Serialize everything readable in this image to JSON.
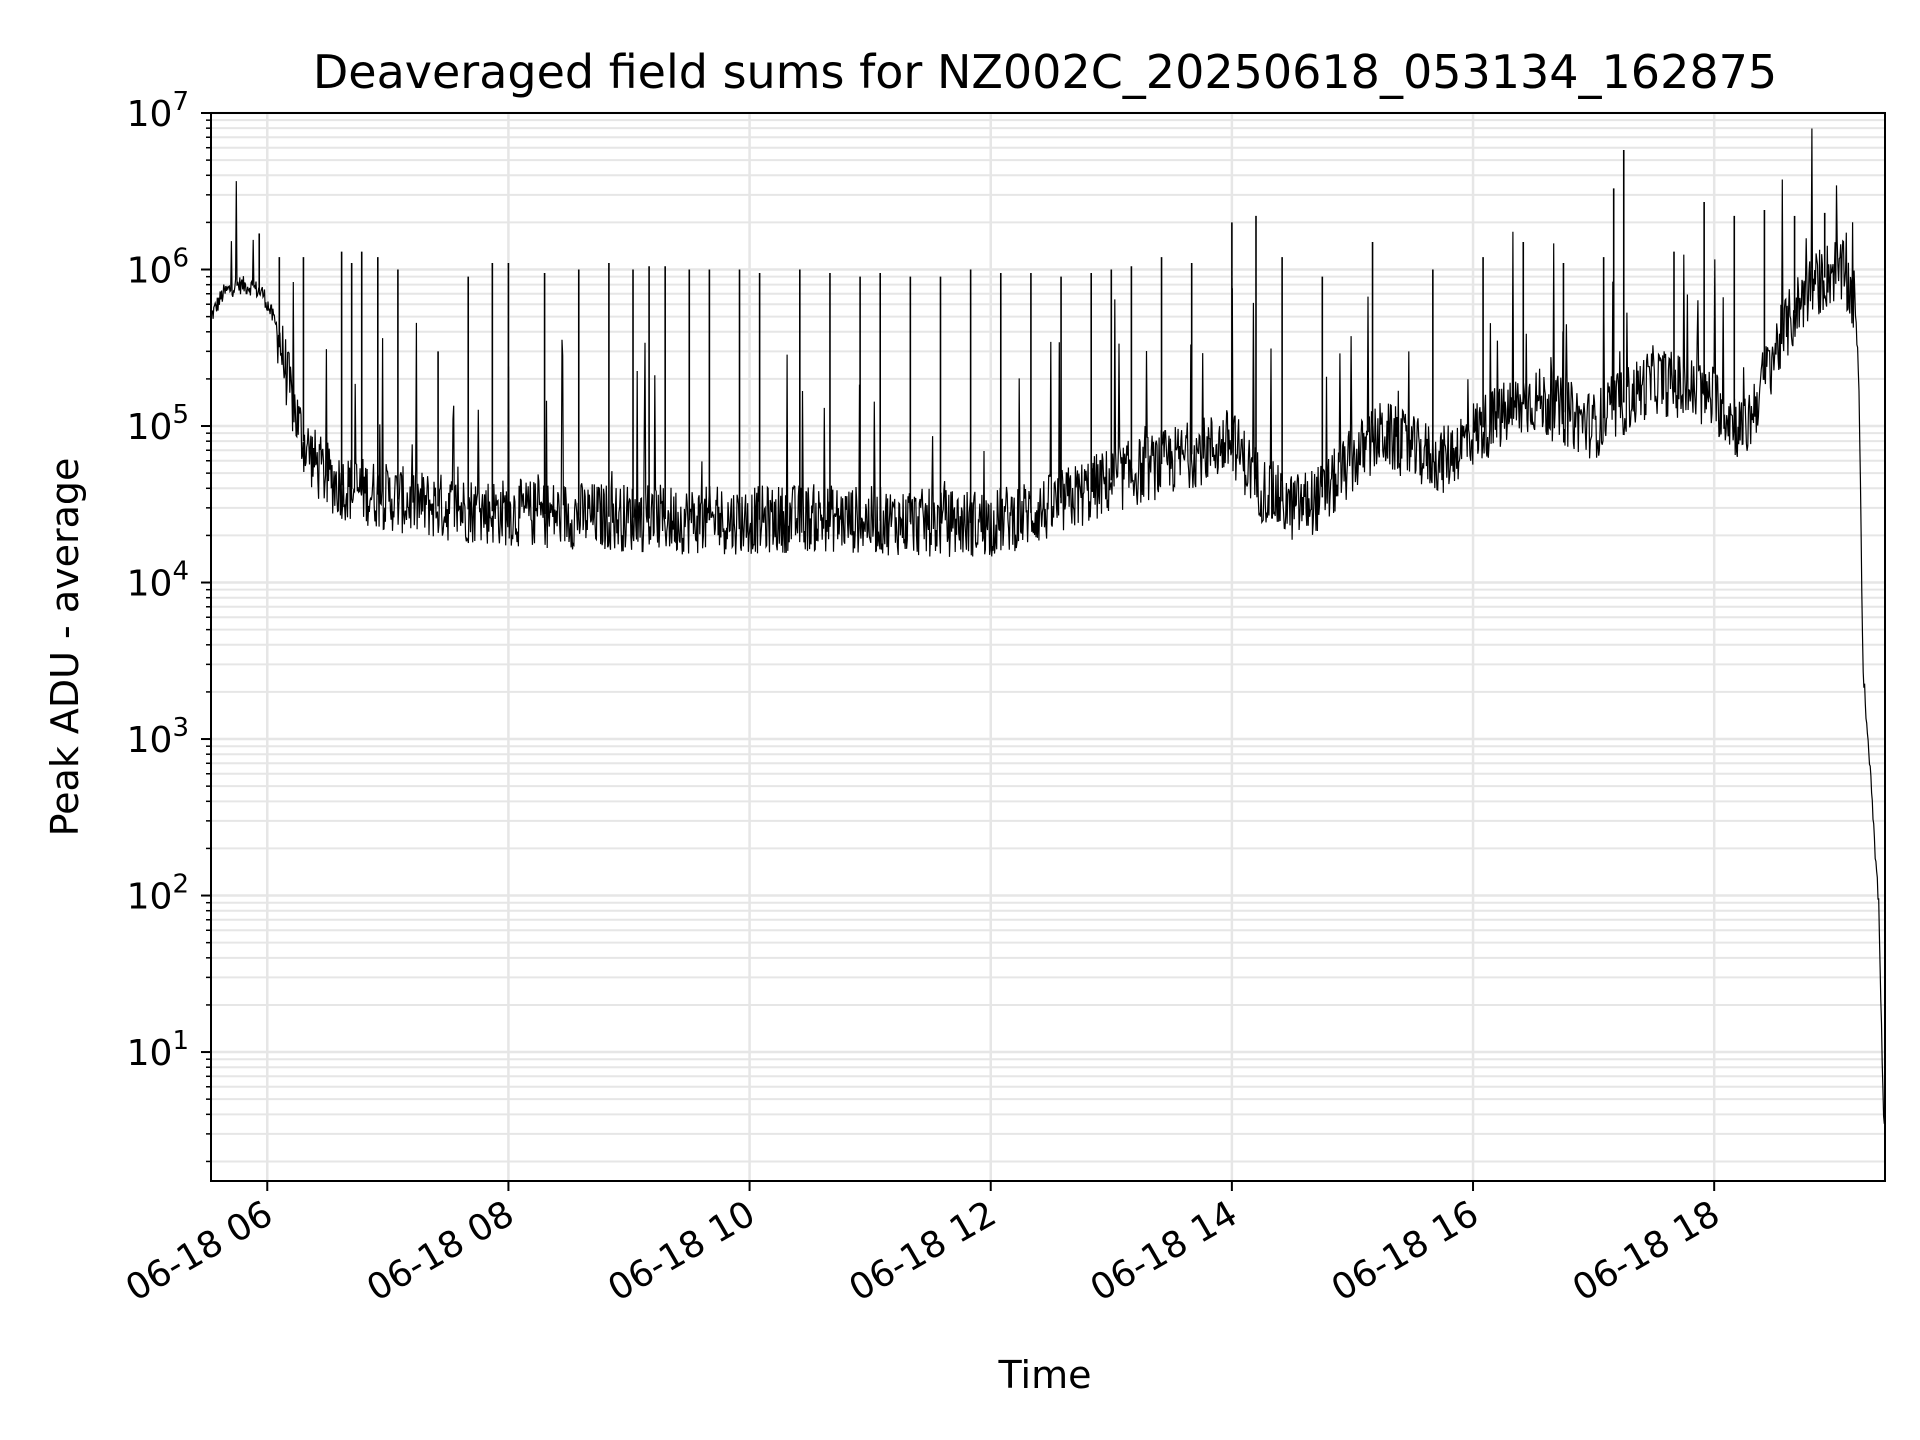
{
  "chart_data": {
    "type": "line",
    "title": "Deaveraged field sums for NZ002C_20250618_053134_162875",
    "xlabel": "Time",
    "ylabel": "Peak ADU - average",
    "yscale": "log",
    "ylim": [
      1.5,
      10000000
    ],
    "xlim": [
      "2025-06-18 05:32",
      "2025-06-18 19:25"
    ],
    "grid": true,
    "line_color": "#000000",
    "grid_color": "#e6e6e6",
    "x_ticks": [
      {
        "value": "2025-06-18 06:00",
        "label": "06-18 06"
      },
      {
        "value": "2025-06-18 08:00",
        "label": "06-18 08"
      },
      {
        "value": "2025-06-18 10:00",
        "label": "06-18 10"
      },
      {
        "value": "2025-06-18 12:00",
        "label": "06-18 12"
      },
      {
        "value": "2025-06-18 14:00",
        "label": "06-18 14"
      },
      {
        "value": "2025-06-18 16:00",
        "label": "06-18 16"
      },
      {
        "value": "2025-06-18 18:00",
        "label": "06-18 18"
      }
    ],
    "y_ticks": [
      {
        "value": 10,
        "base": "10",
        "exp": "1"
      },
      {
        "value": 100,
        "base": "10",
        "exp": "2"
      },
      {
        "value": 1000,
        "base": "10",
        "exp": "3"
      },
      {
        "value": 10000,
        "base": "10",
        "exp": "4"
      },
      {
        "value": 100000,
        "base": "10",
        "exp": "5"
      },
      {
        "value": 1000000,
        "base": "10",
        "exp": "6"
      },
      {
        "value": 10000000,
        "base": "10",
        "exp": "7"
      }
    ],
    "series": [
      {
        "x": [
          "2025-06-18 05:32",
          "2025-06-18 05:38",
          "2025-06-18 05:45",
          "2025-06-18 05:52",
          "2025-06-18 05:58",
          "2025-06-18 06:05",
          "2025-06-18 06:12",
          "2025-06-18 06:18",
          "2025-06-18 06:25",
          "2025-06-18 06:32",
          "2025-06-18 06:40",
          "2025-06-18 06:50",
          "2025-06-18 07:00",
          "2025-06-18 07:15",
          "2025-06-18 07:30",
          "2025-06-18 08:00",
          "2025-06-18 08:30",
          "2025-06-18 09:00",
          "2025-06-18 09:30",
          "2025-06-18 10:00",
          "2025-06-18 10:30",
          "2025-06-18 11:00",
          "2025-06-18 11:30",
          "2025-06-18 12:00",
          "2025-06-18 12:30",
          "2025-06-18 13:00",
          "2025-06-18 13:30",
          "2025-06-18 14:00",
          "2025-06-18 14:15",
          "2025-06-18 14:30",
          "2025-06-18 14:45",
          "2025-06-18 15:00",
          "2025-06-18 15:15",
          "2025-06-18 15:30",
          "2025-06-18 15:45",
          "2025-06-18 16:00",
          "2025-06-18 16:30",
          "2025-06-18 17:00",
          "2025-06-18 17:30",
          "2025-06-18 18:00",
          "2025-06-18 18:15",
          "2025-06-18 18:30",
          "2025-06-18 18:45",
          "2025-06-18 19:00",
          "2025-06-18 19:05",
          "2025-06-18 19:10",
          "2025-06-18 19:12",
          "2025-06-18 19:14",
          "2025-06-18 19:16",
          "2025-06-18 19:18",
          "2025-06-18 19:20",
          "2025-06-18 19:22",
          "2025-06-18 19:23",
          "2025-06-18 19:24",
          "2025-06-18 19:25"
        ],
        "y": [
          500000,
          700000,
          800000,
          780000,
          700000,
          420000,
          150000,
          80000,
          55000,
          45000,
          40000,
          38000,
          35000,
          32000,
          30000,
          28000,
          27000,
          26000,
          25000,
          25000,
          26000,
          25000,
          24000,
          24000,
          30000,
          45000,
          60000,
          80000,
          40000,
          30000,
          35000,
          60000,
          90000,
          70000,
          60000,
          90000,
          150000,
          100000,
          200000,
          150000,
          90000,
          300000,
          700000,
          1000000,
          900000,
          600000,
          200000,
          3000,
          1200,
          600,
          200,
          80,
          20,
          5,
          3
        ],
        "spikes": [
          [
            "2025-06-18 05:56",
            1700000
          ],
          [
            "2025-06-18 06:06",
            1200000
          ],
          [
            "2025-06-18 06:18",
            1200000
          ],
          [
            "2025-06-18 06:37",
            1300000
          ],
          [
            "2025-06-18 06:42",
            1100000
          ],
          [
            "2025-06-18 06:47",
            1300000
          ],
          [
            "2025-06-18 06:55",
            1200000
          ],
          [
            "2025-06-18 07:05",
            1000000
          ],
          [
            "2025-06-18 07:25",
            300000
          ],
          [
            "2025-06-18 07:40",
            900000
          ],
          [
            "2025-06-18 07:52",
            1100000
          ],
          [
            "2025-06-18 08:00",
            1100000
          ],
          [
            "2025-06-18 08:18",
            950000
          ],
          [
            "2025-06-18 08:35",
            1000000
          ],
          [
            "2025-06-18 08:50",
            1100000
          ],
          [
            "2025-06-18 09:02",
            1000000
          ],
          [
            "2025-06-18 09:10",
            1050000
          ],
          [
            "2025-06-18 09:18",
            1050000
          ],
          [
            "2025-06-18 09:30",
            1000000
          ],
          [
            "2025-06-18 09:40",
            1000000
          ],
          [
            "2025-06-18 09:55",
            1000000
          ],
          [
            "2025-06-18 10:05",
            950000
          ],
          [
            "2025-06-18 10:25",
            1000000
          ],
          [
            "2025-06-18 10:40",
            950000
          ],
          [
            "2025-06-18 10:55",
            900000
          ],
          [
            "2025-06-18 11:05",
            950000
          ],
          [
            "2025-06-18 11:20",
            900000
          ],
          [
            "2025-06-18 11:35",
            900000
          ],
          [
            "2025-06-18 11:50",
            1000000
          ],
          [
            "2025-06-18 12:05",
            950000
          ],
          [
            "2025-06-18 12:20",
            950000
          ],
          [
            "2025-06-18 12:35",
            900000
          ],
          [
            "2025-06-18 12:50",
            950000
          ],
          [
            "2025-06-18 13:00",
            1000000
          ],
          [
            "2025-06-18 13:10",
            1050000
          ],
          [
            "2025-06-18 13:25",
            1200000
          ],
          [
            "2025-06-18 13:40",
            1100000
          ],
          [
            "2025-06-18 14:00",
            2000000
          ],
          [
            "2025-06-18 14:12",
            2200000
          ],
          [
            "2025-06-18 14:25",
            1200000
          ],
          [
            "2025-06-18 14:45",
            900000
          ],
          [
            "2025-06-18 15:10",
            1500000
          ],
          [
            "2025-06-18 15:40",
            1000000
          ],
          [
            "2025-06-18 16:05",
            1200000
          ],
          [
            "2025-06-18 16:25",
            1500000
          ],
          [
            "2025-06-18 16:45",
            1100000
          ],
          [
            "2025-06-18 17:05",
            1200000
          ],
          [
            "2025-06-18 17:10",
            3300000
          ],
          [
            "2025-06-18 17:15",
            5800000
          ],
          [
            "2025-06-18 17:40",
            1300000
          ],
          [
            "2025-06-18 17:55",
            2700000
          ],
          [
            "2025-06-18 18:10",
            2200000
          ],
          [
            "2025-06-18 18:25",
            2400000
          ],
          [
            "2025-06-18 18:40",
            2200000
          ],
          [
            "2025-06-18 18:55",
            2300000
          ]
        ]
      }
    ]
  }
}
